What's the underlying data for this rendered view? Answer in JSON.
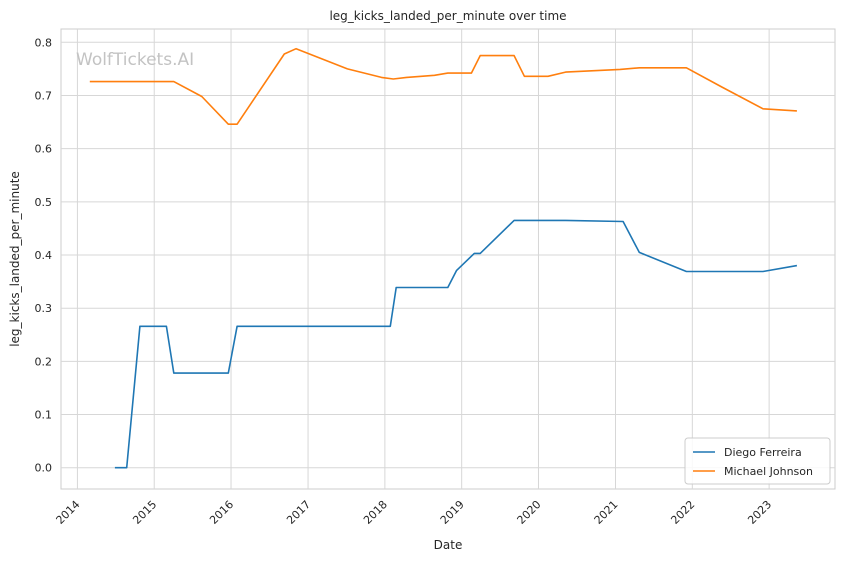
{
  "watermark": "WolfTickets.AI",
  "chart_data": {
    "type": "line",
    "title": "leg_kicks_landed_per_minute over time",
    "xlabel": "Date",
    "ylabel": "leg_kicks_landed_per_minute",
    "x_ticks": [
      "2014",
      "2015",
      "2016",
      "2017",
      "2018",
      "2019",
      "2020",
      "2021",
      "2022",
      "2023"
    ],
    "y_ticks": [
      "0.0",
      "0.1",
      "0.2",
      "0.3",
      "0.4",
      "0.5",
      "0.6",
      "0.7",
      "0.8"
    ],
    "xlim": [
      "2013-10-15",
      "2023-11-10"
    ],
    "ylim": [
      -0.04,
      0.825
    ],
    "grid": true,
    "legend_position": "lower right",
    "series": [
      {
        "name": "Diego Ferreira",
        "color": "#1f77b4",
        "x": [
          "2014-06-28",
          "2014-08-23",
          "2014-10-25",
          "2015-02-28",
          "2015-04-04",
          "2015-12-19",
          "2016-01-30",
          "2018-01-27",
          "2018-02-24",
          "2018-10-27",
          "2018-12-08",
          "2019-03-02",
          "2019-03-30",
          "2019-09-07",
          "2020-05-09",
          "2021-02-06",
          "2021-04-24",
          "2021-12-04",
          "2022-12-03",
          "2023-05-13"
        ],
        "y": [
          0.0,
          0.0,
          0.266,
          0.266,
          0.178,
          0.178,
          0.266,
          0.266,
          0.339,
          0.339,
          0.371,
          0.403,
          0.403,
          0.465,
          0.465,
          0.463,
          0.405,
          0.369,
          0.369,
          0.38
        ]
      },
      {
        "name": "Michael Johnson",
        "color": "#ff7f0e",
        "x": [
          "2014-03-01",
          "2015-04-04",
          "2015-08-15",
          "2015-12-19",
          "2016-01-30",
          "2016-09-10",
          "2016-11-05",
          "2017-07-07",
          "2017-12-16",
          "2018-02-10",
          "2018-04-14",
          "2018-08-25",
          "2018-10-27",
          "2019-02-16",
          "2019-03-30",
          "2019-09-07",
          "2019-10-26",
          "2020-02-15",
          "2020-05-09",
          "2021-01-23",
          "2021-04-24",
          "2021-12-04",
          "2022-05-21",
          "2022-12-03",
          "2023-05-13"
        ],
        "y": [
          0.726,
          0.726,
          0.698,
          0.646,
          0.646,
          0.778,
          0.788,
          0.75,
          0.734,
          0.731,
          0.734,
          0.738,
          0.742,
          0.742,
          0.775,
          0.775,
          0.736,
          0.736,
          0.744,
          0.749,
          0.752,
          0.752,
          0.716,
          0.675,
          0.671
        ]
      }
    ]
  }
}
